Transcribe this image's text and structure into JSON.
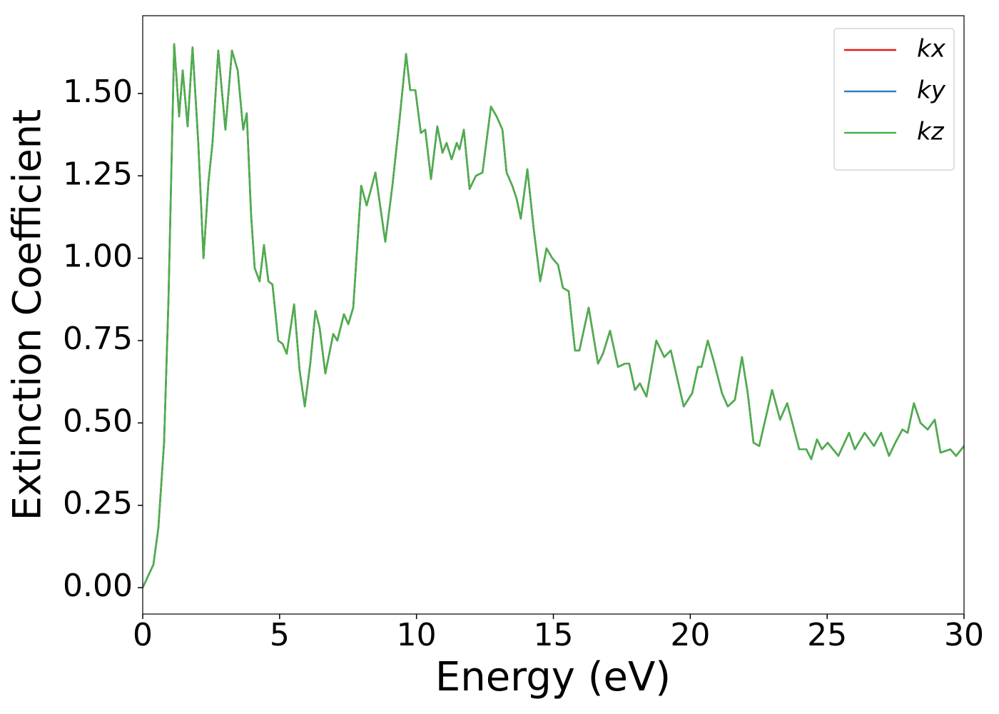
{
  "chart_data": {
    "type": "line",
    "xlabel": "Energy (eV)",
    "ylabel": "Extinction Coefficient",
    "x": [
      0,
      0.39,
      0.57,
      0.78,
      0.94,
      1.15,
      1.33,
      1.46,
      1.64,
      1.82,
      2.03,
      2.22,
      2.4,
      2.55,
      2.76,
      3.02,
      3.26,
      3.47,
      3.67,
      3.8,
      3.96,
      4.09,
      4.27,
      4.43,
      4.59,
      4.74,
      4.95,
      5.11,
      5.26,
      5.53,
      5.73,
      5.92,
      6.12,
      6.31,
      6.46,
      6.67,
      6.96,
      7.11,
      7.35,
      7.51,
      7.69,
      7.98,
      8.18,
      8.5,
      8.86,
      9.12,
      9.38,
      9.62,
      9.77,
      9.96,
      10.16,
      10.32,
      10.53,
      10.76,
      10.95,
      11.1,
      11.28,
      11.47,
      11.57,
      11.73,
      11.94,
      12.17,
      12.41,
      12.72,
      12.93,
      13.14,
      13.29,
      13.5,
      13.66,
      13.81,
      14.05,
      14.28,
      14.52,
      14.75,
      14.96,
      15.17,
      15.35,
      15.56,
      15.79,
      15.95,
      16.29,
      16.63,
      16.81,
      17.07,
      17.36,
      17.62,
      17.77,
      17.98,
      18.16,
      18.4,
      18.76,
      19.05,
      19.29,
      19.76,
      20.07,
      20.28,
      20.41,
      20.64,
      20.85,
      21.16,
      21.37,
      21.63,
      21.89,
      22.1,
      22.31,
      22.52,
      22.99,
      23.28,
      23.54,
      23.98,
      24.24,
      24.42,
      24.63,
      24.81,
      25.02,
      25.41,
      25.8,
      26.01,
      26.37,
      26.71,
      26.97,
      27.26,
      27.49,
      27.75,
      27.94,
      28.17,
      28.41,
      28.67,
      28.93,
      29.14,
      29.5,
      29.71,
      30
    ],
    "series": [
      {
        "name": "kx",
        "color": "#e41a1c",
        "values": [
          0,
          0.07,
          0.18,
          0.44,
          0.87,
          1.65,
          1.43,
          1.57,
          1.4,
          1.64,
          1.35,
          1,
          1.23,
          1.35,
          1.63,
          1.39,
          1.63,
          1.57,
          1.39,
          1.44,
          1.13,
          0.97,
          0.93,
          1.04,
          0.93,
          0.92,
          0.75,
          0.74,
          0.71,
          0.86,
          0.66,
          0.55,
          0.68,
          0.84,
          0.79,
          0.65,
          0.77,
          0.75,
          0.83,
          0.8,
          0.85,
          1.22,
          1.16,
          1.26,
          1.05,
          1.22,
          1.42,
          1.62,
          1.51,
          1.51,
          1.38,
          1.39,
          1.24,
          1.4,
          1.32,
          1.35,
          1.3,
          1.35,
          1.33,
          1.39,
          1.21,
          1.25,
          1.26,
          1.46,
          1.43,
          1.39,
          1.26,
          1.22,
          1.18,
          1.12,
          1.27,
          1.09,
          0.93,
          1.03,
          1,
          0.98,
          0.91,
          0.9,
          0.72,
          0.72,
          0.85,
          0.68,
          0.71,
          0.78,
          0.67,
          0.68,
          0.68,
          0.6,
          0.62,
          0.58,
          0.75,
          0.7,
          0.72,
          0.55,
          0.59,
          0.67,
          0.67,
          0.75,
          0.69,
          0.59,
          0.55,
          0.57,
          0.7,
          0.59,
          0.44,
          0.43,
          0.6,
          0.51,
          0.56,
          0.42,
          0.42,
          0.39,
          0.45,
          0.42,
          0.44,
          0.4,
          0.47,
          0.42,
          0.47,
          0.43,
          0.47,
          0.4,
          0.44,
          0.48,
          0.47,
          0.56,
          0.5,
          0.48,
          0.51,
          0.41,
          0.42,
          0.4,
          0.43
        ]
      },
      {
        "name": "ky",
        "color": "#377eb8",
        "values": [
          0,
          0.07,
          0.18,
          0.44,
          0.87,
          1.65,
          1.43,
          1.57,
          1.4,
          1.64,
          1.35,
          1,
          1.23,
          1.35,
          1.63,
          1.39,
          1.63,
          1.57,
          1.39,
          1.44,
          1.13,
          0.97,
          0.93,
          1.04,
          0.93,
          0.92,
          0.75,
          0.74,
          0.71,
          0.86,
          0.66,
          0.55,
          0.68,
          0.84,
          0.79,
          0.65,
          0.77,
          0.75,
          0.83,
          0.8,
          0.85,
          1.22,
          1.16,
          1.26,
          1.05,
          1.22,
          1.42,
          1.62,
          1.51,
          1.51,
          1.38,
          1.39,
          1.24,
          1.4,
          1.32,
          1.35,
          1.3,
          1.35,
          1.33,
          1.39,
          1.21,
          1.25,
          1.26,
          1.46,
          1.43,
          1.39,
          1.26,
          1.22,
          1.18,
          1.12,
          1.27,
          1.09,
          0.93,
          1.03,
          1,
          0.98,
          0.91,
          0.9,
          0.72,
          0.72,
          0.85,
          0.68,
          0.71,
          0.78,
          0.67,
          0.68,
          0.68,
          0.6,
          0.62,
          0.58,
          0.75,
          0.7,
          0.72,
          0.55,
          0.59,
          0.67,
          0.67,
          0.75,
          0.69,
          0.59,
          0.55,
          0.57,
          0.7,
          0.59,
          0.44,
          0.43,
          0.6,
          0.51,
          0.56,
          0.42,
          0.42,
          0.39,
          0.45,
          0.42,
          0.44,
          0.4,
          0.47,
          0.42,
          0.47,
          0.43,
          0.47,
          0.4,
          0.44,
          0.48,
          0.47,
          0.56,
          0.5,
          0.48,
          0.51,
          0.41,
          0.42,
          0.4,
          0.43
        ]
      },
      {
        "name": "kz",
        "color": "#4daf4a",
        "values": [
          0,
          0.07,
          0.18,
          0.44,
          0.87,
          1.65,
          1.43,
          1.57,
          1.4,
          1.64,
          1.35,
          1,
          1.23,
          1.35,
          1.63,
          1.39,
          1.63,
          1.57,
          1.39,
          1.44,
          1.13,
          0.97,
          0.93,
          1.04,
          0.93,
          0.92,
          0.75,
          0.74,
          0.71,
          0.86,
          0.66,
          0.55,
          0.68,
          0.84,
          0.79,
          0.65,
          0.77,
          0.75,
          0.83,
          0.8,
          0.85,
          1.22,
          1.16,
          1.26,
          1.05,
          1.22,
          1.42,
          1.62,
          1.51,
          1.51,
          1.38,
          1.39,
          1.24,
          1.4,
          1.32,
          1.35,
          1.3,
          1.35,
          1.33,
          1.39,
          1.21,
          1.25,
          1.26,
          1.46,
          1.43,
          1.39,
          1.26,
          1.22,
          1.18,
          1.12,
          1.27,
          1.09,
          0.93,
          1.03,
          1,
          0.98,
          0.91,
          0.9,
          0.72,
          0.72,
          0.85,
          0.68,
          0.71,
          0.78,
          0.67,
          0.68,
          0.68,
          0.6,
          0.62,
          0.58,
          0.75,
          0.7,
          0.72,
          0.55,
          0.59,
          0.67,
          0.67,
          0.75,
          0.69,
          0.59,
          0.55,
          0.57,
          0.7,
          0.59,
          0.44,
          0.43,
          0.6,
          0.51,
          0.56,
          0.42,
          0.42,
          0.39,
          0.45,
          0.42,
          0.44,
          0.4,
          0.47,
          0.42,
          0.47,
          0.43,
          0.47,
          0.4,
          0.44,
          0.48,
          0.47,
          0.56,
          0.5,
          0.48,
          0.51,
          0.41,
          0.42,
          0.4,
          0.43
        ]
      }
    ],
    "xlim": [
      0,
      30
    ],
    "xticks": [
      0,
      5,
      10,
      15,
      20,
      25,
      30
    ],
    "ylim": [
      -0.08,
      1.736
    ],
    "yticks": [
      {
        "value": 0,
        "label": "0.00"
      },
      {
        "value": 0.25,
        "label": "0.25"
      },
      {
        "value": 0.5,
        "label": "0.50"
      },
      {
        "value": 0.75,
        "label": "0.75"
      },
      {
        "value": 1,
        "label": "1.00"
      },
      {
        "value": 1.25,
        "label": "1.25"
      },
      {
        "value": 1.5,
        "label": "1.50"
      }
    ],
    "grid": false,
    "legend": "upper right"
  }
}
